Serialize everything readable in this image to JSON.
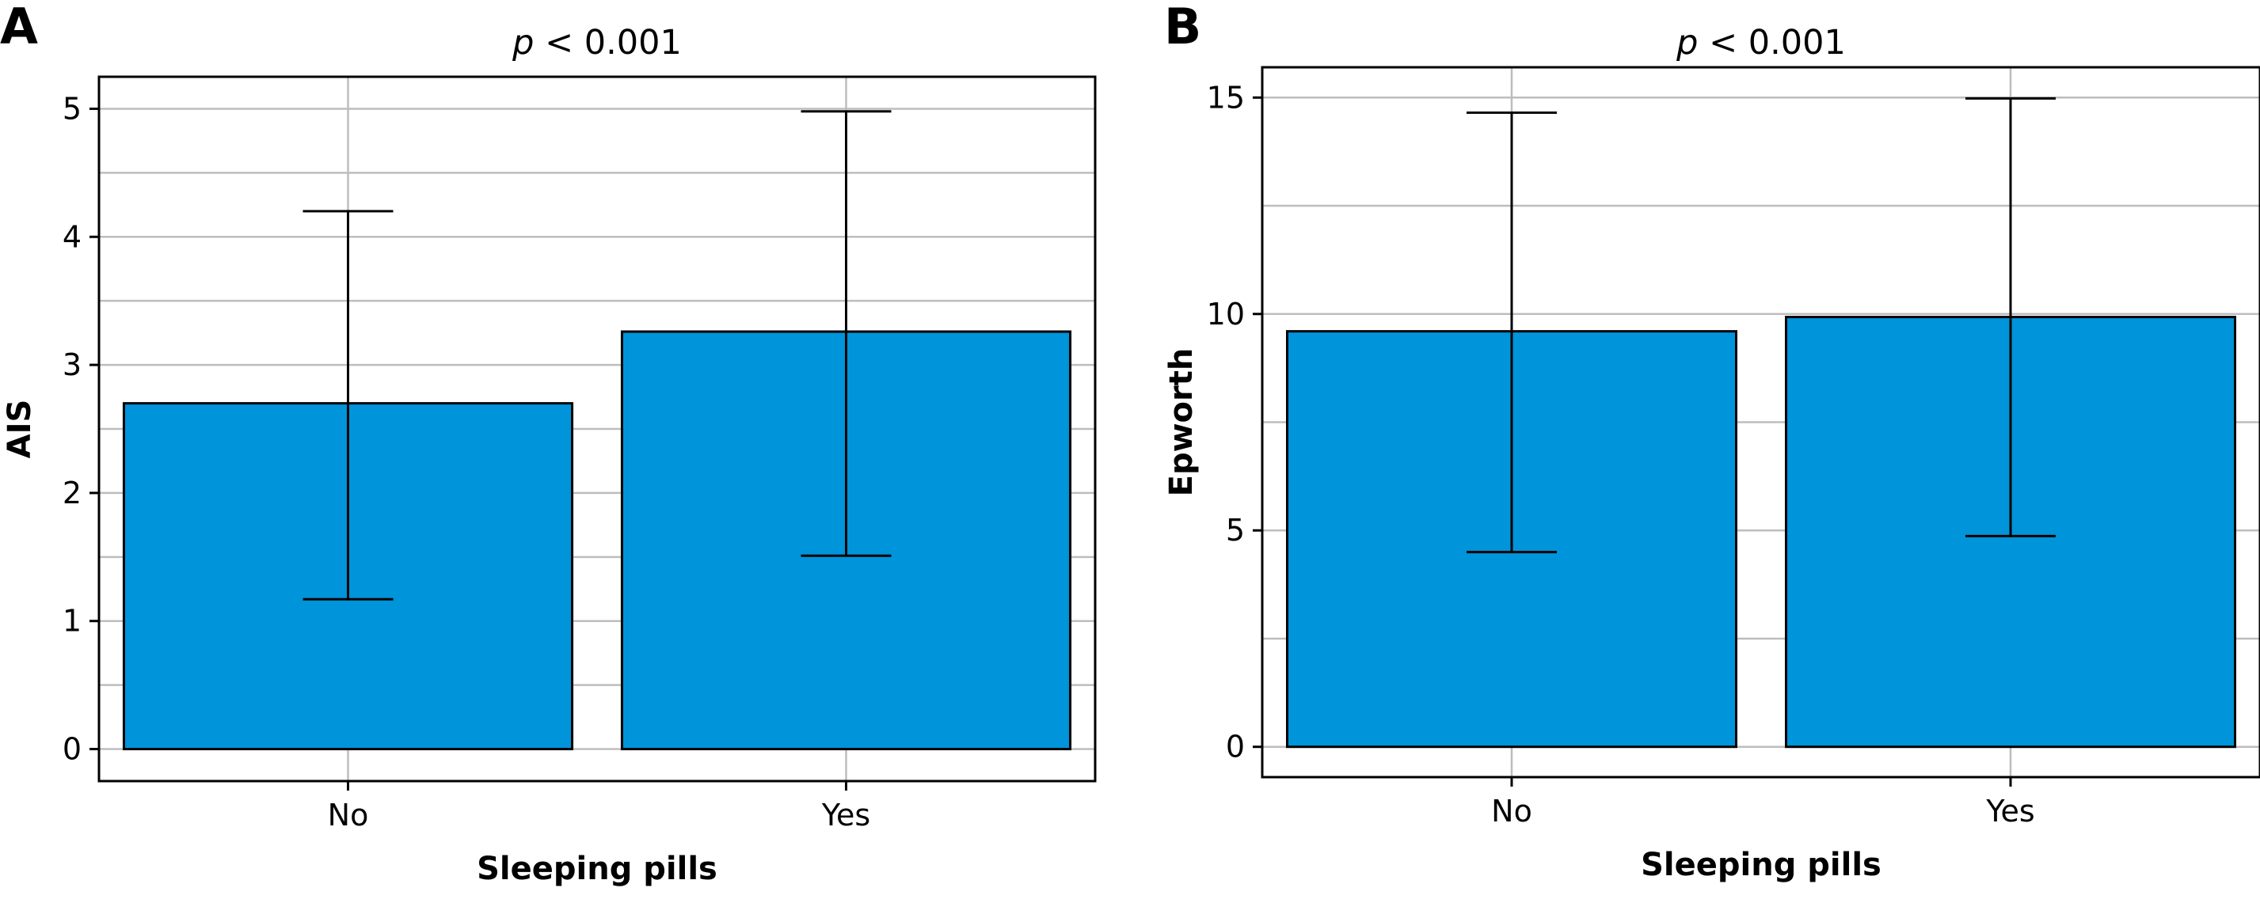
{
  "chart_data": [
    {
      "type": "bar",
      "panel": "A",
      "title_prefix": "p",
      "title_rest": " < 0.001",
      "categories": [
        "No",
        "Yes"
      ],
      "values": [
        2.7,
        3.26
      ],
      "error_low": [
        1.17,
        1.51
      ],
      "error_high": [
        4.2,
        4.98
      ],
      "xlabel": "Sleeping pills",
      "ylabel": "AIS",
      "ylim": [
        -0.25,
        5.25
      ],
      "yticks": [
        0,
        1,
        2,
        3,
        4,
        5
      ],
      "minor_yticks": [
        0.5,
        1.5,
        2.5,
        3.5,
        4.5
      ],
      "bar_color": "#0094da",
      "grid": true
    },
    {
      "type": "bar",
      "panel": "B",
      "title_prefix": "p",
      "title_rest": " < 0.001",
      "categories": [
        "No",
        "Yes"
      ],
      "values": [
        9.6,
        9.93
      ],
      "error_low": [
        4.5,
        4.87
      ],
      "error_high": [
        14.65,
        14.98
      ],
      "xlabel": "Sleeping pills",
      "ylabel": "Epworth",
      "ylim": [
        -0.7,
        15.7
      ],
      "yticks": [
        0,
        5,
        10,
        15
      ],
      "minor_yticks": [
        2.5,
        7.5,
        12.5
      ],
      "bar_color": "#0094da",
      "grid": true
    }
  ]
}
